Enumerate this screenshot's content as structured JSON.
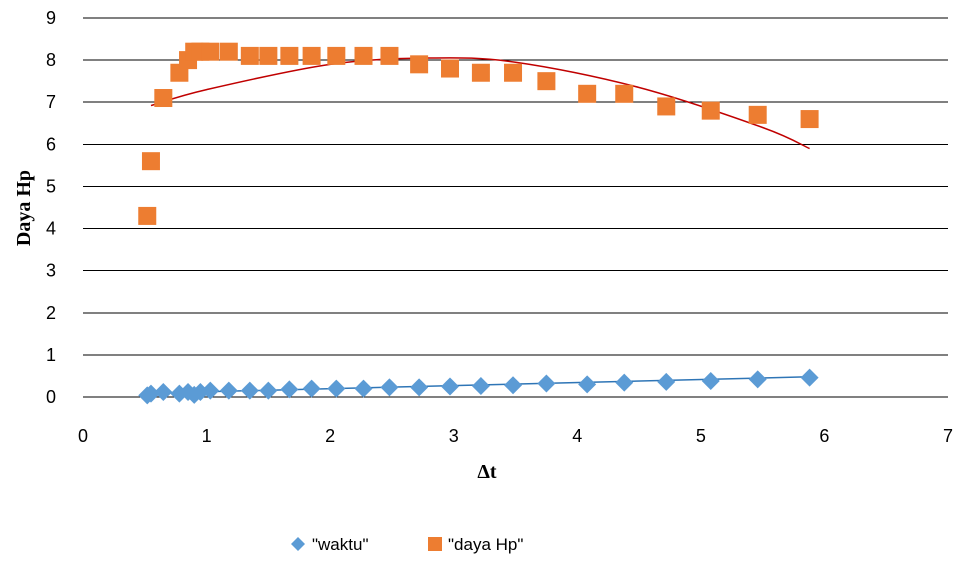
{
  "chart_data": {
    "type": "scatter",
    "title": "",
    "xlabel": "Δt",
    "ylabel": "Daya Hp",
    "xlim": [
      0,
      7
    ],
    "ylim": [
      0,
      9
    ],
    "x_ticks": [
      "0",
      "1",
      "2",
      "3",
      "4",
      "5",
      "6",
      "7"
    ],
    "y_ticks": [
      "0",
      "1",
      "2",
      "3",
      "4",
      "5",
      "6",
      "7",
      "8",
      "9"
    ],
    "grid": "horizontal",
    "legend_position": "bottom",
    "series": [
      {
        "name": "\"waktu\"",
        "marker": "diamond",
        "color": "#5B9BD5",
        "x": [
          0.52,
          0.55,
          0.65,
          0.78,
          0.85,
          0.9,
          0.95,
          1.03,
          1.18,
          1.35,
          1.5,
          1.67,
          1.85,
          2.05,
          2.27,
          2.48,
          2.72,
          2.97,
          3.22,
          3.48,
          3.75,
          4.08,
          4.38,
          4.72,
          5.08,
          5.46,
          5.88
        ],
        "y": [
          0.04,
          0.08,
          0.12,
          0.08,
          0.12,
          0.05,
          0.12,
          0.15,
          0.15,
          0.15,
          0.15,
          0.18,
          0.2,
          0.2,
          0.2,
          0.23,
          0.23,
          0.25,
          0.26,
          0.28,
          0.32,
          0.3,
          0.34,
          0.36,
          0.38,
          0.42,
          0.46
        ],
        "trendline": {
          "type": "linear",
          "x": [
            0.52,
            5.88
          ],
          "y": [
            0.09,
            0.48
          ],
          "color": "#2E75B6"
        }
      },
      {
        "name": "\"daya Hp\"",
        "marker": "square",
        "color": "#ED7D31",
        "x": [
          0.52,
          0.55,
          0.65,
          0.78,
          0.85,
          0.9,
          0.95,
          1.03,
          1.18,
          1.35,
          1.5,
          1.67,
          1.85,
          2.05,
          2.27,
          2.48,
          2.72,
          2.97,
          3.22,
          3.48,
          3.75,
          4.08,
          4.38,
          4.72,
          5.08,
          5.46,
          5.88
        ],
        "y": [
          4.3,
          5.6,
          7.1,
          7.7,
          8.0,
          8.2,
          8.2,
          8.2,
          8.2,
          8.1,
          8.1,
          8.1,
          8.1,
          8.1,
          8.1,
          8.1,
          7.9,
          7.8,
          7.7,
          7.7,
          7.5,
          7.2,
          7.2,
          6.9,
          6.8,
          6.7,
          6.6
        ],
        "trendline": {
          "type": "polynomial",
          "order": 2,
          "x": [
            0.55,
            1.0,
            2.0,
            2.8,
            3.5,
            4.5,
            5.5,
            5.88
          ],
          "y": [
            6.92,
            7.3,
            7.9,
            8.05,
            7.95,
            7.35,
            6.4,
            5.9
          ],
          "color": "#C00000"
        }
      }
    ]
  }
}
